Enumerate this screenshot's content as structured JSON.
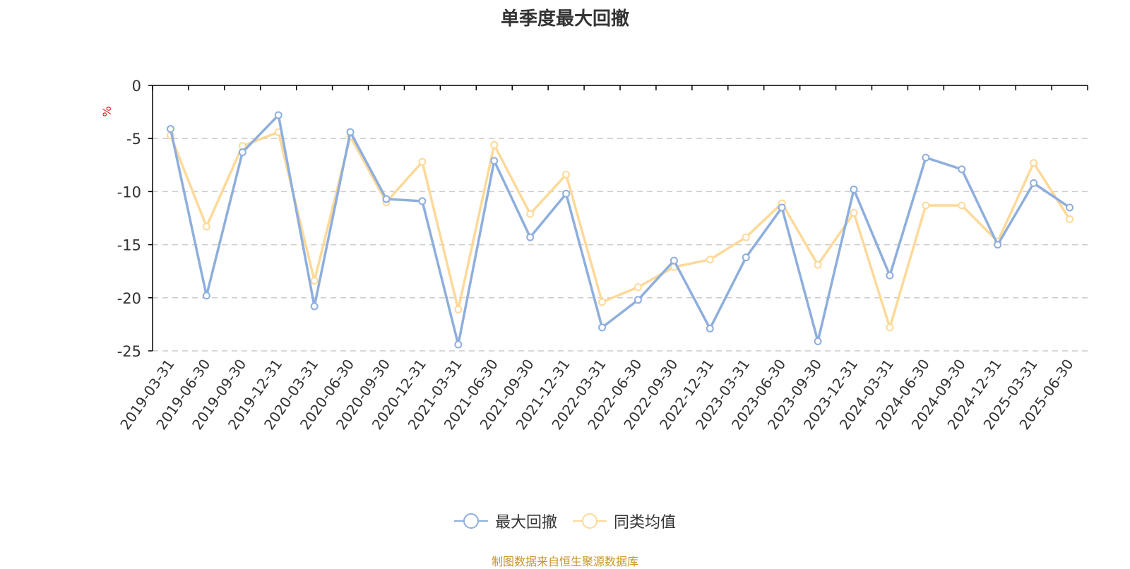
{
  "title": "单季度最大回撤",
  "source_note": "制图数据来自恒生聚源数据库",
  "colors": {
    "series1": "#8eaedd",
    "series2": "#fdd999",
    "unit": "#e02020",
    "grid": "#cccccc",
    "axis": "#000000",
    "source": "#c8952b"
  },
  "chart_data": {
    "type": "line",
    "title": "单季度最大回撤",
    "ylabel": "%",
    "xlabel": "",
    "ylim": [
      -25,
      0
    ],
    "yticks": [
      0,
      -5,
      -10,
      -15,
      -20,
      -25
    ],
    "grid": true,
    "legend_position": "bottom-center",
    "categories": [
      "2019-03-31",
      "2019-06-30",
      "2019-09-30",
      "2019-12-31",
      "2020-03-31",
      "2020-06-30",
      "2020-09-30",
      "2020-12-31",
      "2021-03-31",
      "2021-06-30",
      "2021-09-30",
      "2021-12-31",
      "2022-03-31",
      "2022-06-30",
      "2022-09-30",
      "2022-12-31",
      "2023-03-31",
      "2023-06-30",
      "2023-09-30",
      "2023-12-31",
      "2024-03-31",
      "2024-06-30",
      "2024-09-30",
      "2024-12-31",
      "2025-03-31",
      "2025-06-30"
    ],
    "series": [
      {
        "name": "最大回撤",
        "values": [
          -4.1,
          -19.8,
          -6.3,
          -2.8,
          -20.8,
          -4.4,
          -10.7,
          -10.9,
          -24.4,
          -7.1,
          -14.3,
          -10.2,
          -22.8,
          -20.2,
          -16.5,
          -22.9,
          -16.2,
          -11.5,
          -24.1,
          -9.8,
          -17.9,
          -6.8,
          -7.9,
          -15.0,
          -9.2,
          -11.5
        ]
      },
      {
        "name": "同类均值",
        "values": [
          -4.7,
          -13.3,
          -5.7,
          -4.4,
          -18.4,
          -4.8,
          -11.0,
          -7.2,
          -21.1,
          -5.6,
          -12.1,
          -8.4,
          -20.4,
          -19.0,
          -17.1,
          -16.4,
          -14.3,
          -11.1,
          -16.9,
          -12.0,
          -22.8,
          -11.3,
          -11.3,
          -14.7,
          -7.3,
          -12.6
        ]
      }
    ]
  }
}
